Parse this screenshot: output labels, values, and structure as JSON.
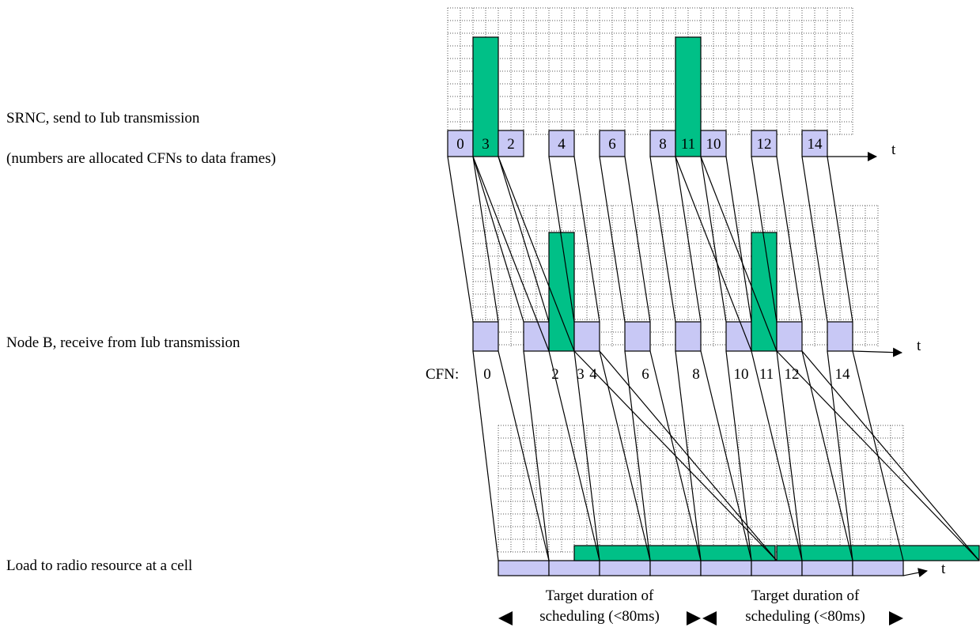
{
  "labels": {
    "srnc_title": "SRNC, send to Iub transmission",
    "srnc_subtitle": "(numbers are allocated CFNs to data frames)",
    "nodeb_title": "Node B, receive from Iub transmission",
    "cell_title": "Load to radio resource at a cell"
  },
  "axis_label": "t",
  "cfn_prefix": "CFN:",
  "srnc_frames": [
    "0",
    "3",
    "2",
    "4",
    "6",
    "8",
    "11",
    "10",
    "12",
    "14"
  ],
  "nodeb_frames": [
    "0",
    "2",
    "3",
    "4",
    "6",
    "8",
    "10",
    "11",
    "12",
    "14"
  ],
  "target": {
    "line1": "Target duration of",
    "line2": "scheduling (<80ms)"
  },
  "colors": {
    "frame_fill": "#c8c8f5",
    "burst_fill": "#00c087",
    "grid": "#555555"
  }
}
